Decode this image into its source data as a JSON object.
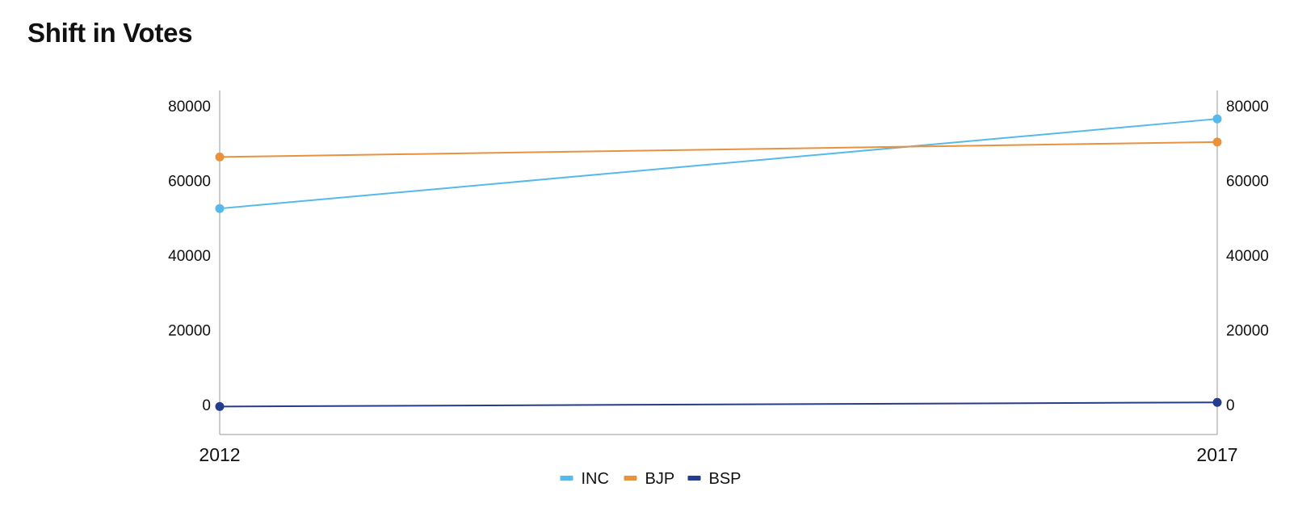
{
  "chart_data": {
    "type": "line",
    "title": "Shift in Votes",
    "categories": [
      "2012",
      "2017"
    ],
    "ylim": [
      -8000,
      84000
    ],
    "yticks": [
      0,
      20000,
      40000,
      60000,
      80000
    ],
    "y_axis_sides": "left and right (mirrored)",
    "grid": false,
    "legend_position": "bottom",
    "series": [
      {
        "name": "INC",
        "color": "#56b9ea",
        "values": [
          52500,
          76500
        ]
      },
      {
        "name": "BJP",
        "color": "#e8923e",
        "values": [
          66300,
          70300
        ]
      },
      {
        "name": "BSP",
        "color": "#263c8c",
        "values": [
          -500,
          600
        ]
      }
    ]
  }
}
